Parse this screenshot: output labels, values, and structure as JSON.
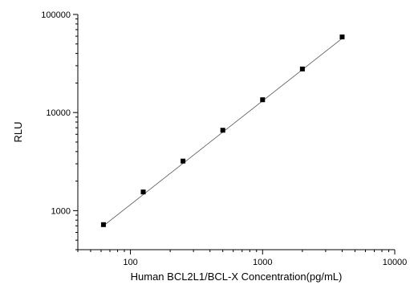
{
  "chart_data": {
    "type": "scatter",
    "title": "",
    "xlabel": "Human BCL2L1/BCL-X Concentration(pg/mL)",
    "ylabel": "RLU",
    "x_scale": "log",
    "y_scale": "log",
    "xlim": [
      40,
      10000
    ],
    "ylim": [
      400,
      100000
    ],
    "x_tick_labels": [
      "100",
      "1000",
      "10000"
    ],
    "y_tick_labels": [
      "1000",
      "10000",
      "100000"
    ],
    "grid": false,
    "legend": "none",
    "series": [
      {
        "x": [
          62.5,
          125,
          250,
          500,
          1000,
          2000,
          4000
        ],
        "y": [
          720,
          1550,
          3200,
          6600,
          13500,
          27800,
          59000
        ]
      }
    ],
    "fit_line": {
      "x": [
        62.5,
        4000
      ],
      "y": [
        700,
        57000
      ]
    },
    "colors": {
      "marker": "#000000",
      "line": "#555555",
      "axis": "#000000"
    }
  }
}
